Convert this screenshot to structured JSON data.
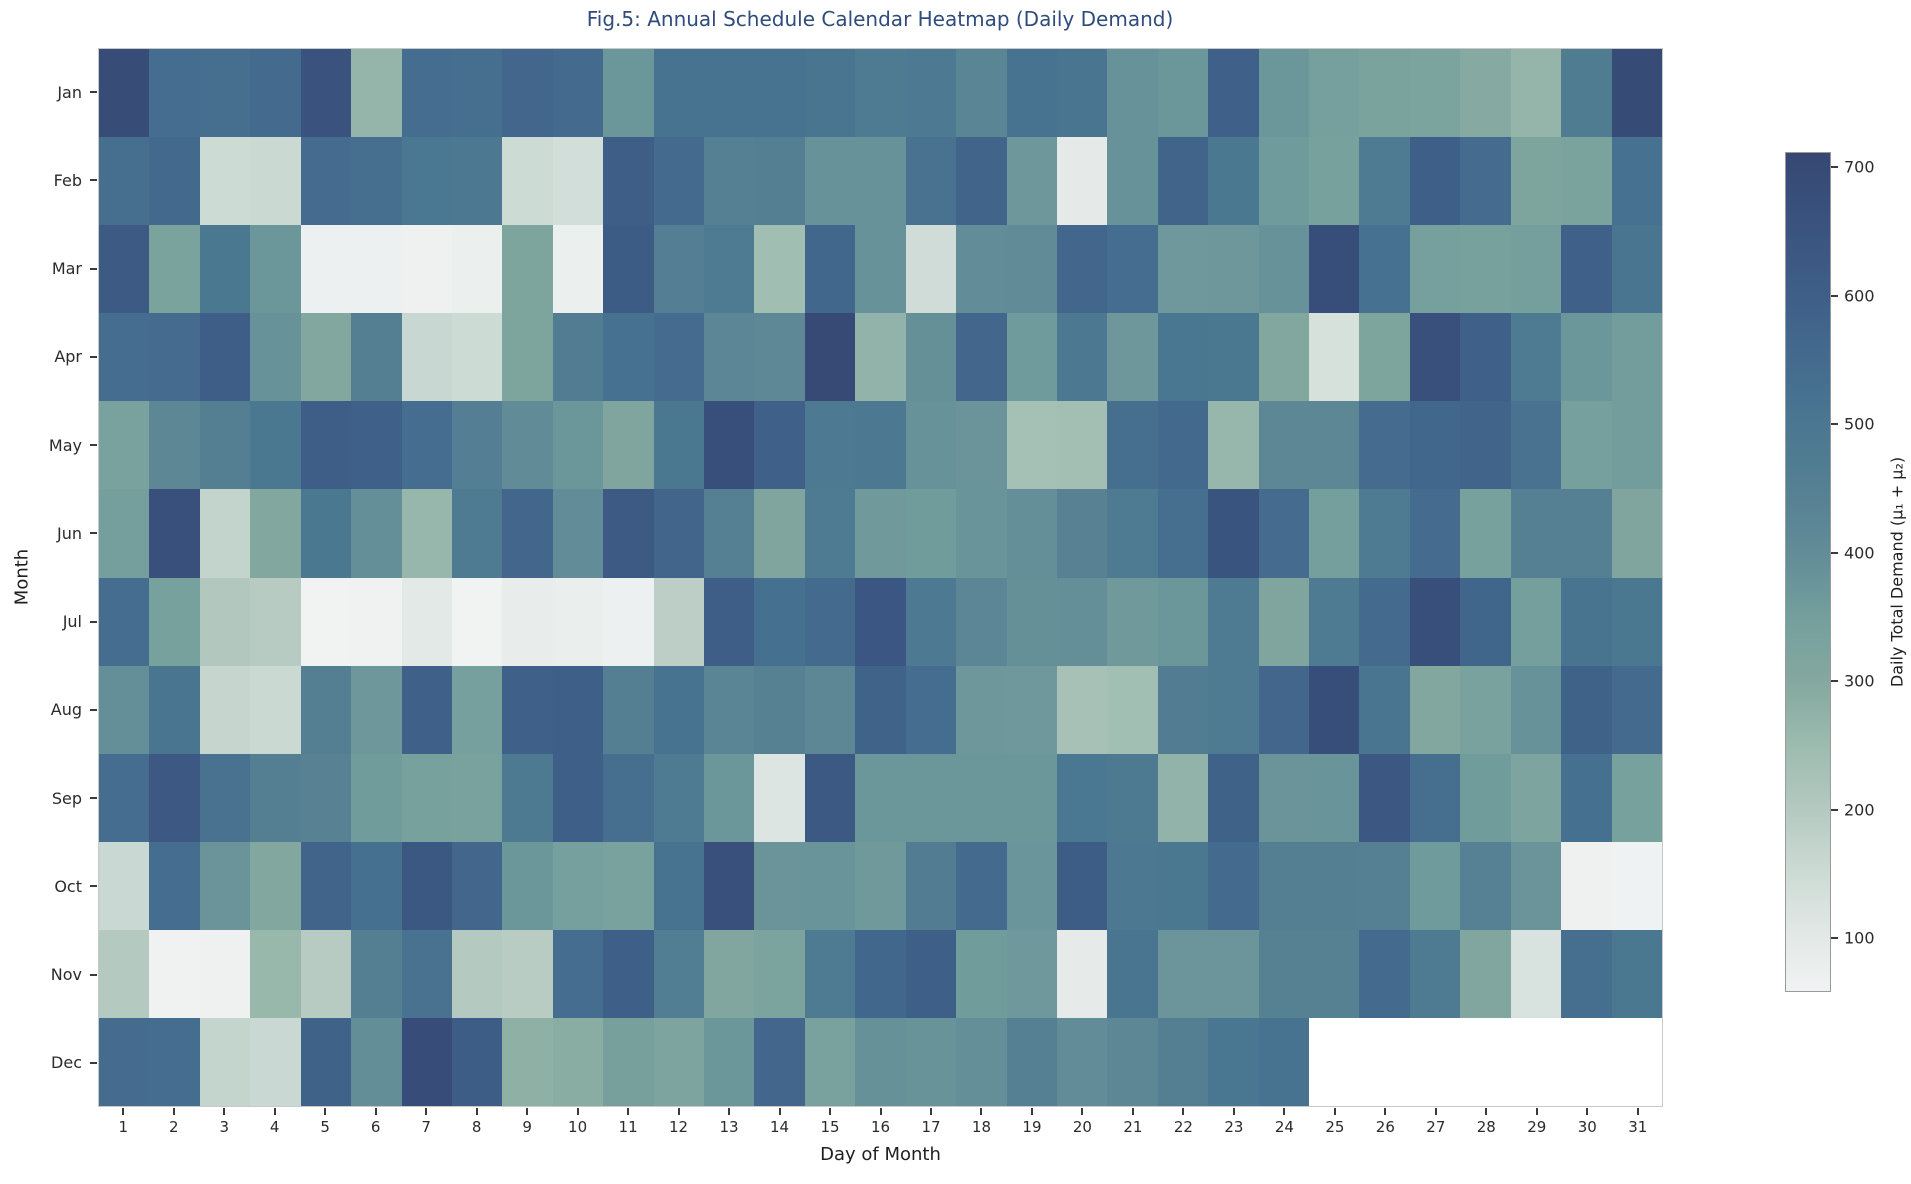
{
  "chart_data": {
    "type": "heatmap",
    "title": "Fig.5: Annual Schedule Calendar Heatmap (Daily Demand)",
    "title_color": "#2f4c7c",
    "xlabel": "Day of Month",
    "ylabel": "Month",
    "x_ticks": [
      1,
      2,
      3,
      4,
      5,
      6,
      7,
      8,
      9,
      10,
      11,
      12,
      13,
      14,
      15,
      16,
      17,
      18,
      19,
      20,
      21,
      22,
      23,
      24,
      25,
      26,
      27,
      28,
      29,
      30,
      31
    ],
    "y_ticks": [
      "Jan",
      "Feb",
      "Mar",
      "Apr",
      "May",
      "Jun",
      "Jul",
      "Aug",
      "Sep",
      "Oct",
      "Nov",
      "Dec"
    ],
    "grid": false,
    "legend_position": "right-colorbar",
    "rows": [
      {
        "month": "Jan",
        "values": [
          690,
          540,
          535,
          548,
          660,
          265,
          540,
          538,
          570,
          550,
          375,
          515,
          515,
          515,
          510,
          480,
          485,
          430,
          515,
          510,
          385,
          372,
          590,
          375,
          345,
          330,
          325,
          295,
          265,
          475,
          695
        ]
      },
      {
        "month": "Feb",
        "values": [
          535,
          555,
          150,
          155,
          545,
          535,
          500,
          490,
          150,
          140,
          605,
          550,
          450,
          455,
          385,
          385,
          520,
          580,
          370,
          95,
          383,
          580,
          495,
          360,
          340,
          480,
          600,
          545,
          320,
          330,
          525
        ]
      },
      {
        "month": "Mar",
        "values": [
          625,
          330,
          495,
          375,
          70,
          70,
          65,
          75,
          320,
          75,
          620,
          460,
          480,
          240,
          565,
          385,
          145,
          400,
          405,
          570,
          540,
          368,
          370,
          385,
          680,
          525,
          345,
          340,
          350,
          595,
          510
        ]
      },
      {
        "month": "Apr",
        "values": [
          540,
          545,
          605,
          385,
          305,
          455,
          160,
          150,
          320,
          470,
          525,
          545,
          425,
          415,
          700,
          270,
          390,
          570,
          360,
          490,
          370,
          505,
          495,
          305,
          130,
          320,
          670,
          590,
          480,
          375,
          355
        ]
      },
      {
        "month": "May",
        "values": [
          335,
          420,
          455,
          495,
          605,
          590,
          540,
          460,
          405,
          375,
          315,
          495,
          675,
          590,
          485,
          490,
          385,
          378,
          232,
          235,
          535,
          555,
          260,
          420,
          420,
          545,
          565,
          580,
          520,
          345,
          355
        ]
      },
      {
        "month": "Jun",
        "values": [
          350,
          670,
          170,
          305,
          495,
          395,
          260,
          480,
          570,
          400,
          625,
          575,
          450,
          315,
          480,
          365,
          358,
          380,
          395,
          440,
          480,
          535,
          650,
          545,
          348,
          480,
          545,
          340,
          450,
          452,
          315
        ]
      },
      {
        "month": "Jul",
        "values": [
          540,
          340,
          205,
          195,
          60,
          62,
          100,
          60,
          85,
          78,
          70,
          185,
          605,
          530,
          548,
          640,
          485,
          425,
          390,
          393,
          365,
          372,
          480,
          315,
          482,
          548,
          675,
          572,
          348,
          512,
          495
        ]
      },
      {
        "month": "Aug",
        "values": [
          395,
          510,
          165,
          155,
          455,
          370,
          590,
          345,
          595,
          600,
          455,
          515,
          430,
          445,
          420,
          585,
          540,
          370,
          368,
          228,
          237,
          470,
          483,
          570,
          678,
          510,
          308,
          335,
          385,
          588,
          548
        ]
      },
      {
        "month": "Sep",
        "values": [
          540,
          630,
          520,
          455,
          440,
          358,
          340,
          333,
          488,
          598,
          538,
          480,
          375,
          115,
          628,
          375,
          372,
          372,
          374,
          498,
          488,
          270,
          588,
          378,
          380,
          638,
          538,
          358,
          322,
          530,
          340
        ]
      },
      {
        "month": "Oct",
        "values": [
          158,
          540,
          378,
          305,
          580,
          530,
          632,
          570,
          372,
          345,
          335,
          518,
          668,
          378,
          380,
          365,
          470,
          548,
          377,
          610,
          490,
          495,
          552,
          455,
          455,
          452,
          360,
          448,
          378,
          65,
          63
        ]
      },
      {
        "month": "Nov",
        "values": [
          200,
          62,
          65,
          258,
          195,
          455,
          520,
          200,
          193,
          540,
          598,
          462,
          312,
          325,
          483,
          568,
          598,
          357,
          368,
          90,
          508,
          376,
          376,
          445,
          445,
          548,
          480,
          310,
          125,
          533,
          495
        ]
      },
      {
        "month": "Dec",
        "values": [
          545,
          540,
          168,
          158,
          588,
          398,
          692,
          608,
          280,
          288,
          342,
          322,
          375,
          570,
          335,
          388,
          382,
          392,
          450,
          400,
          420,
          455,
          505,
          515,
          null,
          null,
          null,
          null,
          null,
          null,
          null
        ]
      }
    ],
    "colorbar": {
      "label": "Daily Total Demand (μ₁ + μ₂)",
      "ticks": [
        100,
        200,
        300,
        400,
        500,
        600,
        700
      ],
      "vmin": 58,
      "vmax": 712,
      "colormap": [
        {
          "v": 58,
          "c": "#f1f3f3"
        },
        {
          "v": 100,
          "c": "#e3e9e7"
        },
        {
          "v": 150,
          "c": "#cddbd5"
        },
        {
          "v": 200,
          "c": "#b4c9c0"
        },
        {
          "v": 250,
          "c": "#9cbbaf"
        },
        {
          "v": 300,
          "c": "#84a89f"
        },
        {
          "v": 350,
          "c": "#749f9d"
        },
        {
          "v": 400,
          "c": "#628c97"
        },
        {
          "v": 450,
          "c": "#558093"
        },
        {
          "v": 500,
          "c": "#4a7791"
        },
        {
          "v": 550,
          "c": "#446b8e"
        },
        {
          "v": 600,
          "c": "#3e5f88"
        },
        {
          "v": 650,
          "c": "#3a5480"
        },
        {
          "v": 700,
          "c": "#374a76"
        },
        {
          "v": 712,
          "c": "#364872"
        }
      ],
      "missing_color": "#ffffff"
    }
  }
}
